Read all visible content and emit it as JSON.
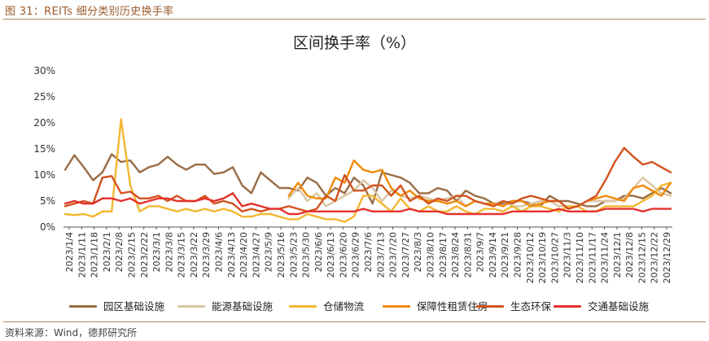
{
  "figure_caption": "图 31：REITs 细分类别历史换手率",
  "source_note": "资料来源：Wind，德邦研究所",
  "colors": {
    "园区基础设施": "#9a6d45",
    "能源基础设施": "#d9c6a5",
    "仓储物流": "#f3b731",
    "保障性租赁住房": "#f08a0a",
    "生态环保": "#d2531f",
    "交通基础设施": "#e5322d"
  },
  "chart_data": {
    "type": "line",
    "title": "区间换手率（%）",
    "xlabel": "",
    "ylabel": "",
    "ylim": [
      0,
      30
    ],
    "yticks": [
      "0%",
      "5%",
      "10%",
      "15%",
      "20%",
      "25%",
      "30%"
    ],
    "x_tick_labels": [
      "2023/1/4",
      "2023/1/11",
      "2023/1/18",
      "2023/2/1",
      "2023/2/8",
      "2023/2/15",
      "2023/2/22",
      "2023/3/1",
      "2023/3/8",
      "2023/3/15",
      "2023/3/22",
      "2023/3/29",
      "2023/4/6",
      "2023/4/13",
      "2023/4/20",
      "2023/4/27",
      "2023/5/9",
      "2023/5/16",
      "2023/5/23",
      "2023/5/30",
      "2023/6/6",
      "2023/6/13",
      "2023/6/20",
      "2023/6/29",
      "2023/7/6",
      "2023/7/13",
      "2023/7/20",
      "2023/7/27",
      "2023/8/3",
      "2023/8/10",
      "2023/8/17",
      "2023/8/24",
      "2023/8/31",
      "2023/9/7",
      "2023/9/14",
      "2023/9/21",
      "2023/9/28",
      "2023/10/12",
      "2023/10/19",
      "2023/10/27",
      "2023/11/3",
      "2023/11/10",
      "2023/11/17",
      "2023/11/24",
      "2023/12/1",
      "2023/12/8",
      "2023/12/15",
      "2023/12/22",
      "2023/12/29"
    ],
    "legend_position": "bottom",
    "grid": false,
    "series": [
      {
        "name": "园区基础设施",
        "values": [
          11,
          13.8,
          11.5,
          9,
          10.5,
          14,
          12.5,
          12.8,
          10.5,
          11.5,
          12,
          13.5,
          12,
          11,
          12,
          12,
          10.2,
          10.5,
          11.5,
          8,
          6.5,
          10.5,
          9,
          7.5,
          7.5,
          7,
          9.5,
          8.5,
          6,
          7.5,
          6.5,
          9.5,
          8,
          4.5,
          10.5,
          10,
          9.5,
          8.5,
          6.5,
          6.5,
          7.5,
          7,
          5,
          7,
          6,
          5.5,
          4.5,
          4.5,
          5,
          5,
          4.5,
          4,
          6,
          5,
          5,
          4.5,
          4,
          4,
          5,
          5,
          6,
          6,
          5.5,
          6.5,
          7.5,
          6.5
        ]
      },
      {
        "name": "能源基础设施",
        "values": [
          null,
          null,
          null,
          null,
          null,
          null,
          null,
          null,
          null,
          null,
          null,
          null,
          null,
          null,
          null,
          null,
          null,
          null,
          null,
          null,
          null,
          null,
          null,
          null,
          5.5,
          7.5,
          5,
          6.5,
          4,
          5,
          6,
          7,
          9,
          7.5,
          5,
          7,
          6,
          5.5,
          6,
          5.5,
          5,
          5.5,
          6,
          4,
          5,
          4.5,
          4.5,
          5,
          4,
          4,
          4.5,
          5,
          5,
          4,
          4,
          4,
          5,
          5,
          5,
          5,
          5.5,
          7.5,
          9.5,
          8,
          6.5,
          6
        ]
      },
      {
        "name": "仓储物流",
        "values": [
          2.5,
          2.3,
          2.5,
          2,
          3,
          3,
          20.7,
          8,
          3,
          4,
          4,
          3.5,
          3,
          3.5,
          3,
          3.5,
          3,
          3.5,
          3,
          2,
          2,
          2.5,
          2.5,
          2,
          1.5,
          1.5,
          2.5,
          2,
          1.5,
          1.5,
          1,
          2,
          6,
          6,
          4.5,
          3,
          5.5,
          3.5,
          3,
          4,
          3,
          3,
          4,
          3,
          2.5,
          3.5,
          3.5,
          3,
          4,
          3,
          4,
          4,
          3.5,
          3,
          4,
          4,
          3,
          3,
          4,
          4,
          4,
          4,
          5,
          6,
          8,
          8.5
        ]
      },
      {
        "name": "保障性租赁住房",
        "values": [
          null,
          null,
          null,
          null,
          null,
          null,
          null,
          null,
          null,
          null,
          null,
          null,
          null,
          null,
          null,
          null,
          null,
          null,
          null,
          null,
          null,
          null,
          null,
          null,
          6,
          8.5,
          6,
          5.5,
          5.5,
          9.5,
          8.5,
          12.8,
          11,
          10.5,
          11,
          7.5,
          6,
          7,
          5.5,
          5,
          5,
          4.5,
          5,
          4,
          5,
          4.5,
          4.5,
          4,
          5,
          5,
          4,
          4.5,
          5,
          5,
          3.5,
          4,
          5,
          5.5,
          6,
          5.5,
          5,
          7.5,
          8,
          7,
          6,
          8.5
        ]
      },
      {
        "name": "生态环保",
        "values": [
          4,
          4.5,
          5,
          4.5,
          9.5,
          9.8,
          6.5,
          6.8,
          5.5,
          5.5,
          6,
          5,
          6,
          5,
          5,
          6,
          4.5,
          5,
          4.5,
          3,
          3.5,
          3,
          3.5,
          3.5,
          4,
          3.5,
          3,
          3.5,
          6,
          5,
          10,
          7,
          7,
          8,
          8,
          6,
          8,
          5,
          6,
          4.5,
          5.5,
          5,
          6,
          6,
          5,
          4.5,
          4,
          5,
          4.5,
          5.5,
          6,
          5.5,
          5,
          5,
          3.5,
          4,
          5,
          6,
          9,
          12.5,
          15.2,
          13.5,
          12,
          12.5,
          11.5,
          10.5
        ]
      },
      {
        "name": "交通基础设施",
        "values": [
          4.5,
          5,
          4.5,
          4.5,
          5.5,
          5.5,
          5,
          5.5,
          4.5,
          5,
          5.5,
          5.5,
          5,
          5,
          5,
          5.5,
          5,
          5.5,
          6.5,
          4,
          4.5,
          4,
          3.5,
          3.5,
          2.5,
          2.5,
          3,
          3,
          3,
          3,
          3,
          3,
          3.5,
          3,
          3,
          3,
          3,
          3.5,
          3,
          3,
          3,
          2.5,
          2.5,
          2.5,
          2.5,
          2.5,
          2.5,
          2.5,
          3,
          3,
          3,
          3,
          3,
          3.5,
          3,
          3,
          3,
          3,
          3.5,
          3.5,
          3.5,
          3.5,
          3,
          3.5,
          3.5,
          3.5
        ]
      }
    ]
  }
}
